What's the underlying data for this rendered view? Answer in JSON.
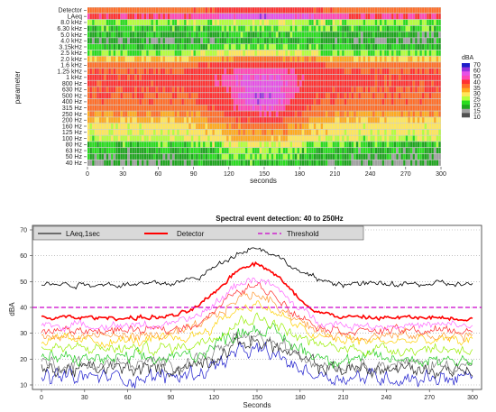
{
  "chart_data": [
    {
      "type": "heatmap",
      "title": "",
      "xlabel": "seconds",
      "ylabel": "parameter",
      "xlim": [
        0,
        300
      ],
      "x_ticks": [
        0,
        30,
        60,
        90,
        120,
        150,
        180,
        210,
        240,
        270,
        300
      ],
      "x_tick_labels": [
        "0",
        "30",
        "60",
        "90",
        "120",
        "150",
        "180",
        "210",
        "240",
        "270",
        "300"
      ],
      "rows": [
        "Detector",
        "LAeq",
        "8.0 kHz",
        "6.30 kHz",
        "5.0 kHz",
        "4.0 kHz",
        "3.15kHz",
        "2.5 kHz",
        "2.0 kHz",
        "1.6 kHz",
        "1.25 kHz",
        "1 kHz",
        "800 Hz",
        "630 Hz",
        "500 Hz",
        "400 Hz",
        "315 Hz",
        "250 Hz",
        "200 Hz",
        "160 Hz",
        "125 Hz",
        "100 Hz",
        "80 Hz",
        "63 Hz",
        "50 Hz",
        "40 Hz"
      ],
      "row_base_level": [
        38,
        52,
        22,
        20,
        18,
        17,
        19,
        22,
        30,
        38,
        42,
        44,
        44,
        42,
        41,
        40,
        38,
        34,
        30,
        27,
        26,
        24,
        20,
        18,
        17,
        16
      ],
      "row_event_gain": [
        10,
        10,
        3,
        2,
        2,
        2,
        3,
        5,
        8,
        12,
        14,
        16,
        18,
        20,
        22,
        22,
        20,
        18,
        14,
        12,
        10,
        8,
        6,
        5,
        5,
        4
      ],
      "event_center_s": 148,
      "event_width_s": 22,
      "colorbar": {
        "title": "dBA",
        "range": [
          10,
          70
        ],
        "tick_labels": [
          "70",
          "60",
          "50",
          "40",
          "35",
          "30",
          "25",
          "20",
          "15",
          "10"
        ],
        "tick_values": [
          70,
          60,
          50,
          40,
          35,
          30,
          25,
          20,
          15,
          10
        ],
        "colors": [
          "#1e1ec8",
          "#9632dc",
          "#e650e6",
          "#ff46b4",
          "#ff3232",
          "#ff6e28",
          "#ffaa1e",
          "#ffe65a",
          "#b4ff3c",
          "#28dc1e",
          "#1ea51e",
          "#a0a0a0",
          "#505050"
        ]
      }
    },
    {
      "type": "line",
      "title": "Spectral event detection: 40 to 250Hz",
      "xlabel": "Seconds",
      "ylabel": "dBA",
      "xlim": [
        0,
        300
      ],
      "ylim": [
        10,
        70
      ],
      "x_ticks": [
        0,
        30,
        60,
        90,
        120,
        150,
        180,
        210,
        240,
        270,
        300
      ],
      "x_tick_labels": [
        "0",
        "30",
        "60",
        "90",
        "120",
        "150",
        "180",
        "210",
        "240",
        "270",
        "300"
      ],
      "y_ticks": [
        10,
        20,
        30,
        40,
        50,
        60,
        70
      ],
      "y_tick_labels": [
        "10",
        "20",
        "30",
        "40",
        "50",
        "60",
        "70"
      ],
      "grid": "horizontal dotted",
      "legend": {
        "placement": "top-left",
        "entries": [
          {
            "label": "LAeq,1sec",
            "color": "#000000",
            "style": "solid"
          },
          {
            "label": "Detector",
            "color": "#ff0000",
            "style": "solid-bold"
          },
          {
            "label": "Threshold",
            "color": "#cc00cc",
            "style": "dashed"
          }
        ]
      },
      "threshold": 40,
      "event_center_s": 148,
      "event_width_s": 22,
      "series": [
        {
          "name": "LAeq,1sec",
          "color": "#000000",
          "base": 49,
          "peak": 14,
          "noise": 1.0,
          "width": 0.8,
          "key": "laeq"
        },
        {
          "name": "Detector",
          "color": "#ff0000",
          "base": 36,
          "peak": 21,
          "noise": 0.8,
          "width": 1.6,
          "key": "detector"
        },
        {
          "color": "#ff66ff",
          "base": 33,
          "peak": 18,
          "noise": 1.4,
          "width": 0.7
        },
        {
          "color": "#ff2a2a",
          "base": 31,
          "peak": 17,
          "noise": 1.5,
          "width": 0.7
        },
        {
          "color": "#ff9933",
          "base": 29,
          "peak": 16,
          "noise": 1.7,
          "width": 0.7
        },
        {
          "color": "#ffd000",
          "base": 27,
          "peak": 14,
          "noise": 1.8,
          "width": 0.7
        },
        {
          "color": "#99ee00",
          "base": 24,
          "peak": 12,
          "noise": 2.0,
          "width": 0.7
        },
        {
          "color": "#22cc22",
          "base": 20,
          "peak": 12,
          "noise": 2.4,
          "width": 0.7
        },
        {
          "color": "#777777",
          "base": 18,
          "peak": 10,
          "noise": 2.5,
          "width": 0.7
        },
        {
          "color": "#222222",
          "base": 16,
          "peak": 11,
          "noise": 2.6,
          "width": 0.7
        },
        {
          "color": "#1a1acc",
          "base": 13,
          "peak": 10,
          "noise": 2.8,
          "width": 0.7
        }
      ]
    }
  ]
}
